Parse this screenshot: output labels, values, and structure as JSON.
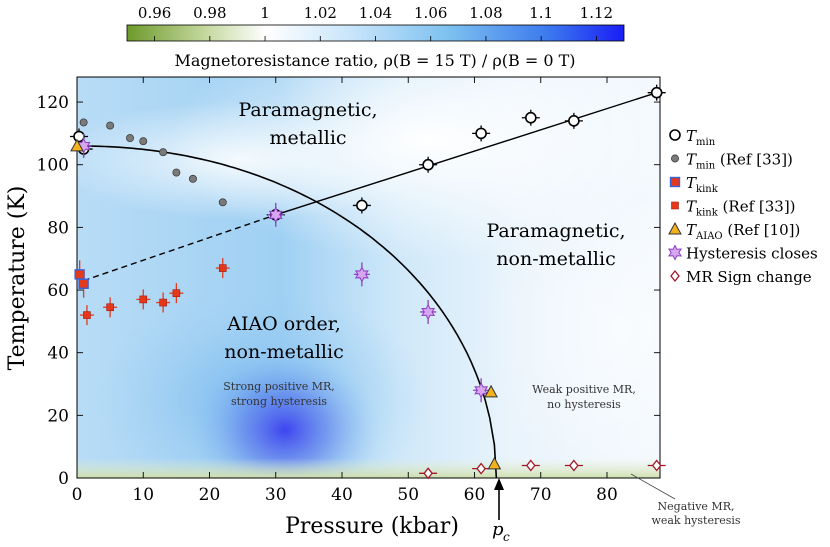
{
  "chart_data": {
    "type": "scatter",
    "title": "",
    "xlabel": "Pressure (kbar)",
    "ylabel": "Temperature (K)",
    "xlim": [
      0,
      88
    ],
    "ylim": [
      0,
      128
    ],
    "xticks": [
      0,
      10,
      20,
      30,
      40,
      50,
      60,
      70,
      80
    ],
    "yticks": [
      0,
      20,
      40,
      60,
      80,
      100,
      120
    ],
    "colorbar": {
      "label": "Magnetoresistance ratio, ρ(B = 15 T) / ρ(B = 0 T)",
      "ticks": [
        "0.96",
        "0.98",
        "1",
        "1.02",
        "1.04",
        "1.06",
        "1.08",
        "1.1",
        "1.12"
      ],
      "range": [
        0.95,
        1.13
      ],
      "low_color": "#6f9a2e",
      "mid_color": "#ffffff",
      "high_color": "#1c2cf0"
    },
    "series": [
      {
        "name": "T_min",
        "marker": "open-circle",
        "color": "#000000",
        "points": [
          [
            0.3,
            109
          ],
          [
            1,
            105
          ],
          [
            30,
            84
          ],
          [
            43,
            87
          ],
          [
            53,
            100
          ],
          [
            61,
            110
          ],
          [
            68.5,
            115
          ],
          [
            75,
            114
          ],
          [
            87.5,
            123
          ]
        ]
      },
      {
        "name": "T_min (Ref [33])",
        "marker": "grey-dot",
        "color": "#777777",
        "points": [
          [
            1,
            113.5
          ],
          [
            5,
            112.5
          ],
          [
            8,
            108.5
          ],
          [
            10,
            107.5
          ],
          [
            13,
            104
          ],
          [
            15,
            97.5
          ],
          [
            17.5,
            95.5
          ],
          [
            22,
            88
          ]
        ]
      },
      {
        "name": "T_kink",
        "marker": "open-square",
        "color": "#e23a1c",
        "points": [
          [
            0.4,
            65
          ],
          [
            1,
            62
          ]
        ]
      },
      {
        "name": "T_kink (Ref [33])",
        "marker": "red-square",
        "color": "#e23a1c",
        "points": [
          [
            1.5,
            52
          ],
          [
            5,
            54.5
          ],
          [
            10,
            57
          ],
          [
            13,
            56
          ],
          [
            15,
            59
          ],
          [
            22,
            67
          ]
        ]
      },
      {
        "name": "T_AIAO (Ref [10])",
        "marker": "triangle",
        "color": "#f2b21e",
        "points": [
          [
            0,
            106
          ],
          [
            62.5,
            27.5
          ],
          [
            63,
            4.5
          ]
        ]
      },
      {
        "name": "Hysteresis closes",
        "marker": "star",
        "color": "#c483e6",
        "points": [
          [
            1,
            106
          ],
          [
            30,
            84
          ],
          [
            43,
            65
          ],
          [
            53,
            53
          ],
          [
            61,
            28
          ]
        ]
      },
      {
        "name": "MR Sign change",
        "marker": "open-diamond",
        "color": "#b0182c",
        "points": [
          [
            53,
            1.5
          ],
          [
            61,
            3
          ],
          [
            68.5,
            4
          ],
          [
            75,
            4
          ],
          [
            87.5,
            4
          ]
        ]
      }
    ],
    "phase_boundary_label_pc": "p",
    "phase_boundary_label_pc_sub": "c",
    "annotations": {
      "para_metal": [
        "Paramagnetic,",
        "metallic"
      ],
      "para_nonmetal": [
        "Paramagnetic,",
        "non-metallic"
      ],
      "aiao": [
        "AIAO order,",
        "non-metallic"
      ],
      "strong_mr": [
        "Strong positive MR,",
        "strong hysteresis"
      ],
      "weak_mr": [
        "Weak positive MR,",
        "no hysteresis"
      ],
      "neg_mr": [
        "Negative MR,",
        "weak hysteresis"
      ]
    },
    "legend_position": "right"
  }
}
